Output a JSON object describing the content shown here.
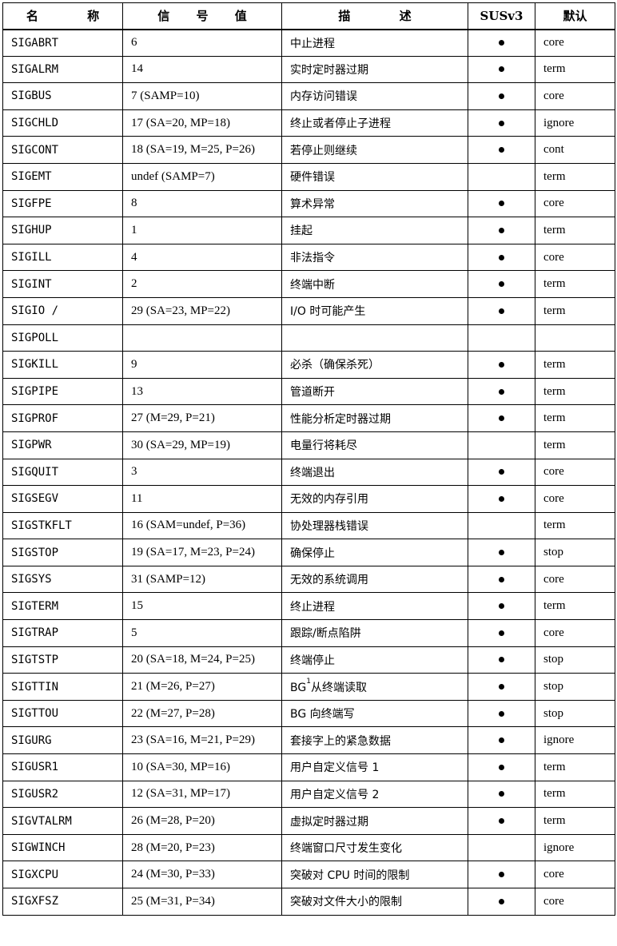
{
  "headers": [
    "名 称",
    "信 号 值",
    "描 述",
    "SUSv3",
    "默认"
  ],
  "rows": [
    {
      "name": "SIGABRT",
      "value": "6",
      "desc": "中止进程",
      "susv3": "●",
      "default": "core"
    },
    {
      "name": "SIGALRM",
      "value": "14",
      "desc": "实时定时器过期",
      "susv3": "●",
      "default": "term"
    },
    {
      "name": "SIGBUS",
      "value": "7 (SAMP=10)",
      "desc": "内存访问错误",
      "susv3": "●",
      "default": "core"
    },
    {
      "name": "SIGCHLD",
      "value": "17 (SA=20, MP=18)",
      "desc": "终止或者停止子进程",
      "susv3": "●",
      "default": "ignore"
    },
    {
      "name": "SIGCONT",
      "value": "18 (SA=19, M=25, P=26)",
      "desc": "若停止则继续",
      "susv3": "●",
      "default": "cont"
    },
    {
      "name": "SIGEMT",
      "value": "undef (SAMP=7)",
      "desc": "硬件错误",
      "susv3": "",
      "default": "term"
    },
    {
      "name": "SIGFPE",
      "value": "8",
      "desc": "算术异常",
      "susv3": "●",
      "default": "core"
    },
    {
      "name": "SIGHUP",
      "value": "1",
      "desc": "挂起",
      "susv3": "●",
      "default": "term"
    },
    {
      "name": "SIGILL",
      "value": "4",
      "desc": "非法指令",
      "susv3": "●",
      "default": "core"
    },
    {
      "name": "SIGINT",
      "value": "2",
      "desc": "终端中断",
      "susv3": "●",
      "default": "term"
    },
    {
      "name": "SIGIO  /",
      "value": "29 (SA=23, MP=22)",
      "desc": "I/O 时可能产生",
      "susv3": "●",
      "default": "term"
    },
    {
      "name": "SIGPOLL",
      "value": "",
      "desc": "",
      "susv3": "",
      "default": ""
    },
    {
      "name": "SIGKILL",
      "value": "9",
      "desc": "必杀（确保杀死）",
      "susv3": "●",
      "default": "term"
    },
    {
      "name": "SIGPIPE",
      "value": "13",
      "desc": "管道断开",
      "susv3": "●",
      "default": "term"
    },
    {
      "name": "SIGPROF",
      "value": "27 (M=29, P=21)",
      "desc": "性能分析定时器过期",
      "susv3": "●",
      "default": "term"
    },
    {
      "name": "SIGPWR",
      "value": "30 (SA=29, MP=19)",
      "desc": "电量行将耗尽",
      "susv3": "",
      "default": "term"
    },
    {
      "name": "SIGQUIT",
      "value": "3",
      "desc": "终端退出",
      "susv3": "●",
      "default": "core"
    },
    {
      "name": "SIGSEGV",
      "value": "11",
      "desc": "无效的内存引用",
      "susv3": "●",
      "default": "core"
    },
    {
      "name": "SIGSTKFLT",
      "value": "16 (SAM=undef, P=36)",
      "desc": "协处理器栈错误",
      "susv3": "",
      "default": "term"
    },
    {
      "name": "SIGSTOP",
      "value": "19 (SA=17, M=23, P=24)",
      "desc": "确保停止",
      "susv3": "●",
      "default": "stop"
    },
    {
      "name": "SIGSYS",
      "value": "31 (SAMP=12)",
      "desc": "无效的系统调用",
      "susv3": "●",
      "default": "core"
    },
    {
      "name": "SIGTERM",
      "value": "15",
      "desc": "终止进程",
      "susv3": "●",
      "default": "term"
    },
    {
      "name": "SIGTRAP",
      "value": "5",
      "desc": "跟踪/断点陷阱",
      "susv3": "●",
      "default": "core"
    },
    {
      "name": "SIGTSTP",
      "value": "20 (SA=18, M=24, P=25)",
      "desc": "终端停止",
      "susv3": "●",
      "default": "stop"
    },
    {
      "name": "SIGTTIN",
      "value": "21 (M=26, P=27)",
      "desc": "BG",
      "desc_sup": "1",
      "desc_rest": "从终端读取",
      "susv3": "●",
      "default": "stop"
    },
    {
      "name": "SIGTTOU",
      "value": "22 (M=27, P=28)",
      "desc": "BG 向终端写",
      "susv3": "●",
      "default": "stop"
    },
    {
      "name": "SIGURG",
      "value": "23 (SA=16, M=21, P=29)",
      "desc": "套接字上的紧急数据",
      "susv3": "●",
      "default": "ignore"
    },
    {
      "name": "SIGUSR1",
      "value": "10 (SA=30, MP=16)",
      "desc": "用户自定义信号 1",
      "susv3": "●",
      "default": "term"
    },
    {
      "name": "SIGUSR2",
      "value": "12 (SA=31, MP=17)",
      "desc": "用户自定义信号 2",
      "susv3": "●",
      "default": "term"
    },
    {
      "name": "SIGVTALRM",
      "value": "26 (M=28, P=20)",
      "desc": "虚拟定时器过期",
      "susv3": "●",
      "default": "term"
    },
    {
      "name": "SIGWINCH",
      "value": "28 (M=20, P=23)",
      "desc": "终端窗口尺寸发生变化",
      "susv3": "",
      "default": "ignore"
    },
    {
      "name": "SIGXCPU",
      "value": "24 (M=30, P=33)",
      "desc": "突破对 CPU 时间的限制",
      "susv3": "●",
      "default": "core"
    },
    {
      "name": "SIGXFSZ",
      "value": "25 (M=31, P=34)",
      "desc": "突破对文件大小的限制",
      "susv3": "●",
      "default": "core"
    }
  ]
}
